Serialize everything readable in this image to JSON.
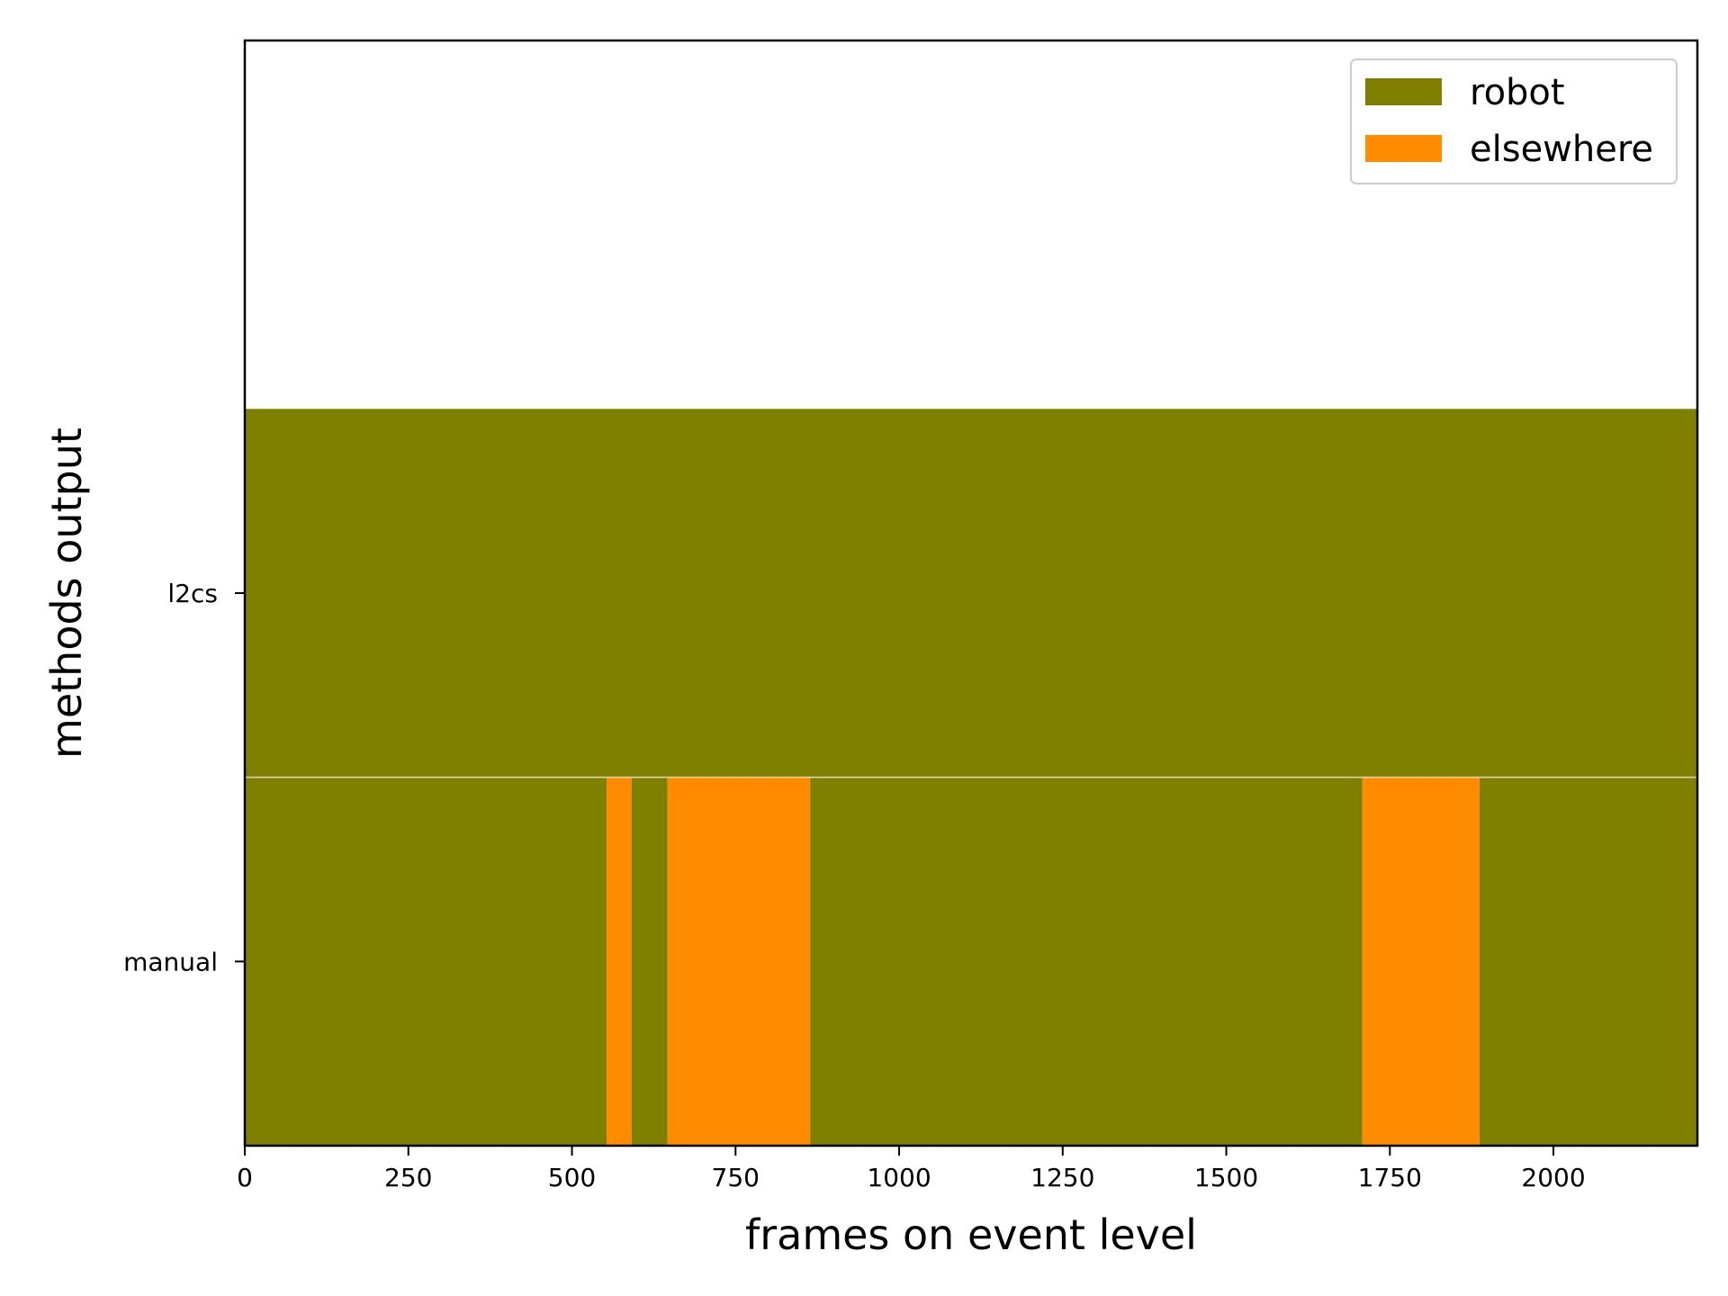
{
  "chart_data": {
    "type": "timeline",
    "xlabel": "frames on event level",
    "ylabel": "methods output",
    "xlim": [
      0,
      2220
    ],
    "xticks": [
      0,
      250,
      500,
      750,
      1000,
      1250,
      1500,
      1750,
      2000
    ],
    "rows": [
      "manual",
      "l2cs"
    ],
    "legend": {
      "placement": "top-right",
      "entries": [
        {
          "label": "robot",
          "color": "#808000"
        },
        {
          "label": "elsewhere",
          "color": "#ff8c00"
        }
      ]
    },
    "segments": {
      "l2cs": [
        {
          "start": 0,
          "end": 2220,
          "label": "robot"
        }
      ],
      "manual": [
        {
          "start": 0,
          "end": 553,
          "label": "robot"
        },
        {
          "start": 553,
          "end": 591,
          "label": "elsewhere"
        },
        {
          "start": 591,
          "end": 646,
          "label": "robot"
        },
        {
          "start": 646,
          "end": 864,
          "label": "elsewhere"
        },
        {
          "start": 864,
          "end": 1708,
          "label": "robot"
        },
        {
          "start": 1708,
          "end": 1887,
          "label": "elsewhere"
        },
        {
          "start": 1887,
          "end": 2220,
          "label": "robot"
        }
      ]
    }
  }
}
